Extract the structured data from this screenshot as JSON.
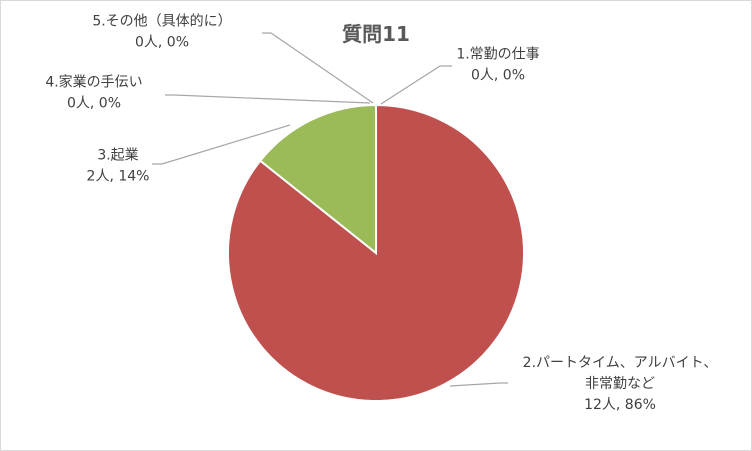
{
  "chart_data": {
    "type": "pie",
    "title": "質問11",
    "slices": [
      {
        "name": "1.常勤の仕事",
        "value": 0,
        "label_lines": [
          "1.常勤の仕事",
          "0人, 0%"
        ],
        "color": "#4f81bd"
      },
      {
        "name": "2.パートタイム、アルバイト、非常勤など",
        "value": 12,
        "label_lines": [
          "2.パートタイム、アルバイト、",
          "非常勤など",
          "12人, 86%"
        ],
        "color": "#c0504d"
      },
      {
        "name": "3.起業",
        "value": 2,
        "label_lines": [
          "3.起業",
          "2人, 14%"
        ],
        "color": "#9bbb59"
      },
      {
        "name": "4.家業の手伝い",
        "value": 0,
        "label_lines": [
          "4.家業の手伝い",
          "0人, 0%"
        ],
        "color": "#8064a2"
      },
      {
        "name": "5.その他（具体的に）",
        "value": 0,
        "label_lines": [
          "5.その他（具体的に）",
          "0人, 0%"
        ],
        "color": "#4bacc6"
      }
    ],
    "legend": "none"
  }
}
